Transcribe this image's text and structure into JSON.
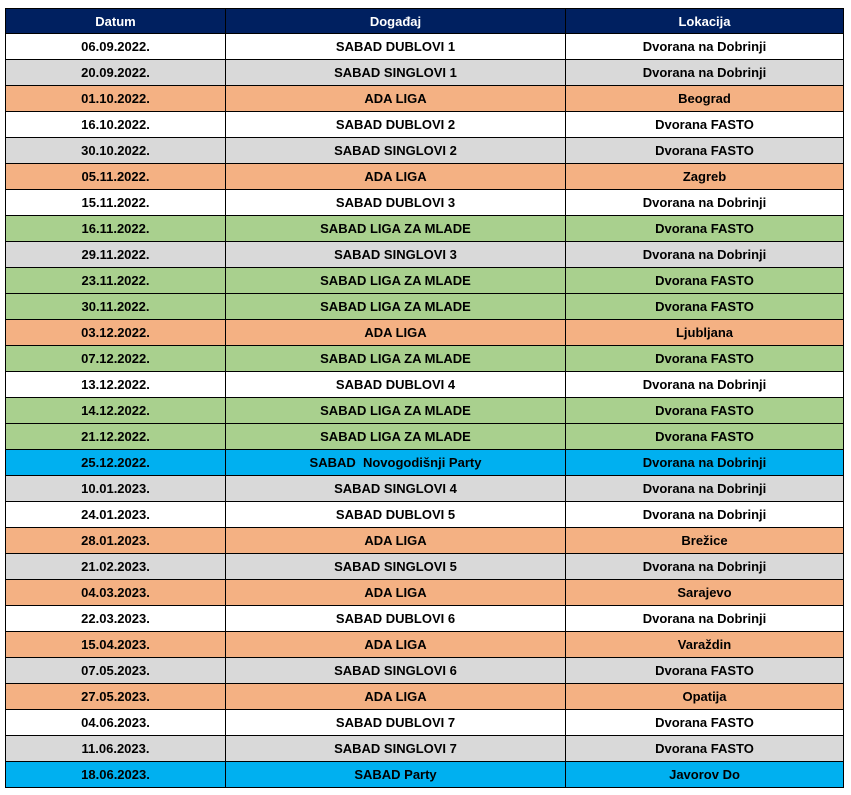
{
  "table": {
    "headers": [
      "Datum",
      "Događaj",
      "Lokacija"
    ],
    "row_colors": {
      "white": "#ffffff",
      "gray": "#d9d9d9",
      "orange": "#f4b183",
      "green": "#a9d08e",
      "blue": "#00b0f0"
    },
    "rows": [
      {
        "date": "06.09.2022.",
        "event": "SABAD DUBLOVI 1",
        "location": "Dvorana na Dobrinji",
        "color": "white"
      },
      {
        "date": "20.09.2022.",
        "event": "SABAD SINGLOVI 1",
        "location": "Dvorana na Dobrinji",
        "color": "gray"
      },
      {
        "date": "01.10.2022.",
        "event": "ADA LIGA",
        "location": "Beograd",
        "color": "orange"
      },
      {
        "date": "16.10.2022.",
        "event": "SABAD DUBLOVI 2",
        "location": "Dvorana FASTO",
        "color": "white"
      },
      {
        "date": "30.10.2022.",
        "event": "SABAD SINGLOVI 2",
        "location": "Dvorana FASTO",
        "color": "gray"
      },
      {
        "date": "05.11.2022.",
        "event": "ADA LIGA",
        "location": "Zagreb",
        "color": "orange"
      },
      {
        "date": "15.11.2022.",
        "event": "SABAD DUBLOVI 3",
        "location": "Dvorana na Dobrinji",
        "color": "white"
      },
      {
        "date": "16.11.2022.",
        "event": "SABAD LIGA ZA MLADE",
        "location": "Dvorana FASTO",
        "color": "green"
      },
      {
        "date": "29.11.2022.",
        "event": "SABAD SINGLOVI 3",
        "location": "Dvorana na Dobrinji",
        "color": "gray"
      },
      {
        "date": "23.11.2022.",
        "event": "SABAD LIGA ZA MLADE",
        "location": "Dvorana FASTO",
        "color": "green"
      },
      {
        "date": "30.11.2022.",
        "event": "SABAD LIGA ZA MLADE",
        "location": "Dvorana FASTO",
        "color": "green"
      },
      {
        "date": "03.12.2022.",
        "event": "ADA LIGA",
        "location": "Ljubljana",
        "color": "orange"
      },
      {
        "date": "07.12.2022.",
        "event": "SABAD LIGA ZA MLADE",
        "location": "Dvorana FASTO",
        "color": "green"
      },
      {
        "date": "13.12.2022.",
        "event": "SABAD DUBLOVI 4",
        "location": "Dvorana na Dobrinji",
        "color": "white"
      },
      {
        "date": "14.12.2022.",
        "event": "SABAD LIGA ZA MLADE",
        "location": "Dvorana FASTO",
        "color": "green"
      },
      {
        "date": "21.12.2022.",
        "event": "SABAD LIGA ZA MLADE",
        "location": "Dvorana FASTO",
        "color": "green"
      },
      {
        "date": "25.12.2022.",
        "event": "SABAD  Novogodišnji Party",
        "location": "Dvorana na Dobrinji",
        "color": "blue"
      },
      {
        "date": "10.01.2023.",
        "event": "SABAD SINGLOVI 4",
        "location": "Dvorana na Dobrinji",
        "color": "gray"
      },
      {
        "date": "24.01.2023.",
        "event": "SABAD DUBLOVI 5",
        "location": "Dvorana na Dobrinji",
        "color": "white"
      },
      {
        "date": "28.01.2023.",
        "event": "ADA LIGA",
        "location": "Brežice",
        "color": "orange"
      },
      {
        "date": "21.02.2023.",
        "event": "SABAD SINGLOVI 5",
        "location": "Dvorana na Dobrinji",
        "color": "gray"
      },
      {
        "date": "04.03.2023.",
        "event": "ADA LIGA",
        "location": "Sarajevo",
        "color": "orange"
      },
      {
        "date": "22.03.2023.",
        "event": "SABAD DUBLOVI 6",
        "location": "Dvorana na Dobrinji",
        "color": "white"
      },
      {
        "date": "15.04.2023.",
        "event": "ADA LIGA",
        "location": "Varaždin",
        "color": "orange"
      },
      {
        "date": "07.05.2023.",
        "event": "SABAD SINGLOVI 6",
        "location": "Dvorana FASTO",
        "color": "gray"
      },
      {
        "date": "27.05.2023.",
        "event": "ADA LIGA",
        "location": "Opatija",
        "color": "orange"
      },
      {
        "date": "04.06.2023.",
        "event": "SABAD DUBLOVI 7",
        "location": "Dvorana FASTO",
        "color": "white"
      },
      {
        "date": "11.06.2023.",
        "event": "SABAD SINGLOVI 7",
        "location": "Dvorana FASTO",
        "color": "gray"
      },
      {
        "date": "18.06.2023.",
        "event": "SABAD Party",
        "location": "Javorov Do",
        "color": "blue"
      }
    ]
  }
}
